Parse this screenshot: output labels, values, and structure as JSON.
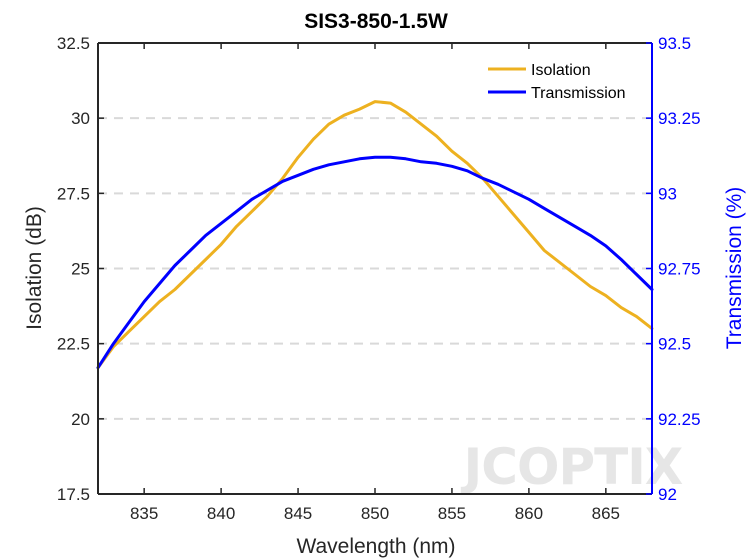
{
  "chart_data": {
    "type": "line",
    "title": "SIS3-850-1.5W",
    "xlabel": "Wavelength (nm)",
    "ylabel": "Isolation (dB)",
    "y2label": "Transmission (%)",
    "xlim": [
      832,
      868
    ],
    "ylim": [
      17.5,
      32.5
    ],
    "y2lim": [
      92,
      93.5
    ],
    "xticks": [
      835,
      840,
      845,
      850,
      855,
      860,
      865
    ],
    "yticks": [
      17.5,
      20,
      22.5,
      25,
      27.5,
      30,
      32.5
    ],
    "ytick_labels": [
      "17.5",
      "20",
      "22.5",
      "25",
      "27.5",
      "30",
      "32.5"
    ],
    "y2ticks": [
      92,
      92.25,
      92.5,
      92.75,
      93,
      93.25,
      93.5
    ],
    "y2tick_labels": [
      "92",
      "92.25",
      "92.5",
      "92.75",
      "93",
      "93.25",
      "93.5"
    ],
    "grid": "horizontal-dashed",
    "legend_position": "top-right",
    "series": [
      {
        "name": "Isolation",
        "axis": "left",
        "color": "#EDB120",
        "x": [
          832,
          833,
          834,
          835,
          836,
          837,
          838,
          839,
          840,
          841,
          842,
          843,
          844,
          845,
          846,
          847,
          848,
          849,
          850,
          851,
          852,
          853,
          854,
          855,
          856,
          857,
          858,
          859,
          860,
          861,
          862,
          863,
          864,
          865,
          866,
          867,
          868
        ],
        "y": [
          21.7,
          22.4,
          22.9,
          23.4,
          23.9,
          24.3,
          24.8,
          25.3,
          25.8,
          26.4,
          26.9,
          27.4,
          28.0,
          28.7,
          29.3,
          29.8,
          30.1,
          30.3,
          30.55,
          30.5,
          30.2,
          29.8,
          29.4,
          28.9,
          28.5,
          28.0,
          27.4,
          26.8,
          26.2,
          25.6,
          25.2,
          24.8,
          24.4,
          24.1,
          23.7,
          23.4,
          23.0
        ]
      },
      {
        "name": "Transmission",
        "axis": "right",
        "color": "#0000FF",
        "x": [
          832,
          833,
          834,
          835,
          836,
          837,
          838,
          839,
          840,
          841,
          842,
          843,
          844,
          845,
          846,
          847,
          848,
          849,
          850,
          851,
          852,
          853,
          854,
          855,
          856,
          857,
          858,
          859,
          860,
          861,
          862,
          863,
          864,
          865,
          866,
          867,
          868
        ],
        "y": [
          92.42,
          92.5,
          92.57,
          92.64,
          92.7,
          92.76,
          92.81,
          92.86,
          92.9,
          92.94,
          92.98,
          93.01,
          93.04,
          93.06,
          93.08,
          93.095,
          93.105,
          93.115,
          93.12,
          93.12,
          93.115,
          93.105,
          93.1,
          93.09,
          93.075,
          93.05,
          93.03,
          93.005,
          92.98,
          92.95,
          92.92,
          92.89,
          92.86,
          92.825,
          92.78,
          92.73,
          92.68
        ]
      }
    ],
    "watermark": "JCOPTIX"
  }
}
